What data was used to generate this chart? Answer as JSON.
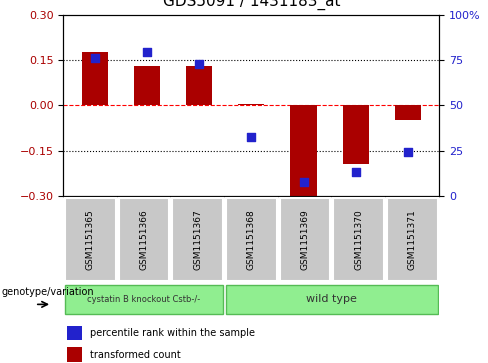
{
  "title": "GDS5091 / 1431183_at",
  "samples": [
    "GSM1151365",
    "GSM1151366",
    "GSM1151367",
    "GSM1151368",
    "GSM1151369",
    "GSM1151370",
    "GSM1151371"
  ],
  "bar_values": [
    0.175,
    0.13,
    0.13,
    0.005,
    -0.305,
    -0.195,
    -0.05
  ],
  "dot_values": [
    0.155,
    0.175,
    0.135,
    -0.105,
    -0.255,
    -0.22,
    -0.155
  ],
  "bar_color": "#AA0000",
  "dot_color": "#2222CC",
  "ylim": [
    -0.3,
    0.3
  ],
  "yticks_left": [
    -0.3,
    -0.15,
    0.0,
    0.15,
    0.3
  ],
  "yticks_right": [
    0,
    25,
    50,
    75,
    100
  ],
  "hlines": [
    0.15,
    0.0,
    -0.15
  ],
  "hline_styles": [
    "dotted",
    "dashed",
    "dotted"
  ],
  "hline_colors": [
    "black",
    "red",
    "black"
  ],
  "group_boundary": 3,
  "group1_label": "cystatin B knockout Cstb-/-",
  "group2_label": "wild type",
  "group_color": "#90EE90",
  "group_edge_color": "#55BB55",
  "bar_width": 0.5,
  "legend_items": [
    {
      "color": "#AA0000",
      "label": "transformed count"
    },
    {
      "color": "#2222CC",
      "label": "percentile rank within the sample"
    }
  ],
  "genotype_label": "genotype/variation",
  "tick_label_color_left": "#AA0000",
  "tick_label_color_right": "#2222CC",
  "cell_color": "#C8C8C8",
  "cell_edge_color": "#FFFFFF"
}
